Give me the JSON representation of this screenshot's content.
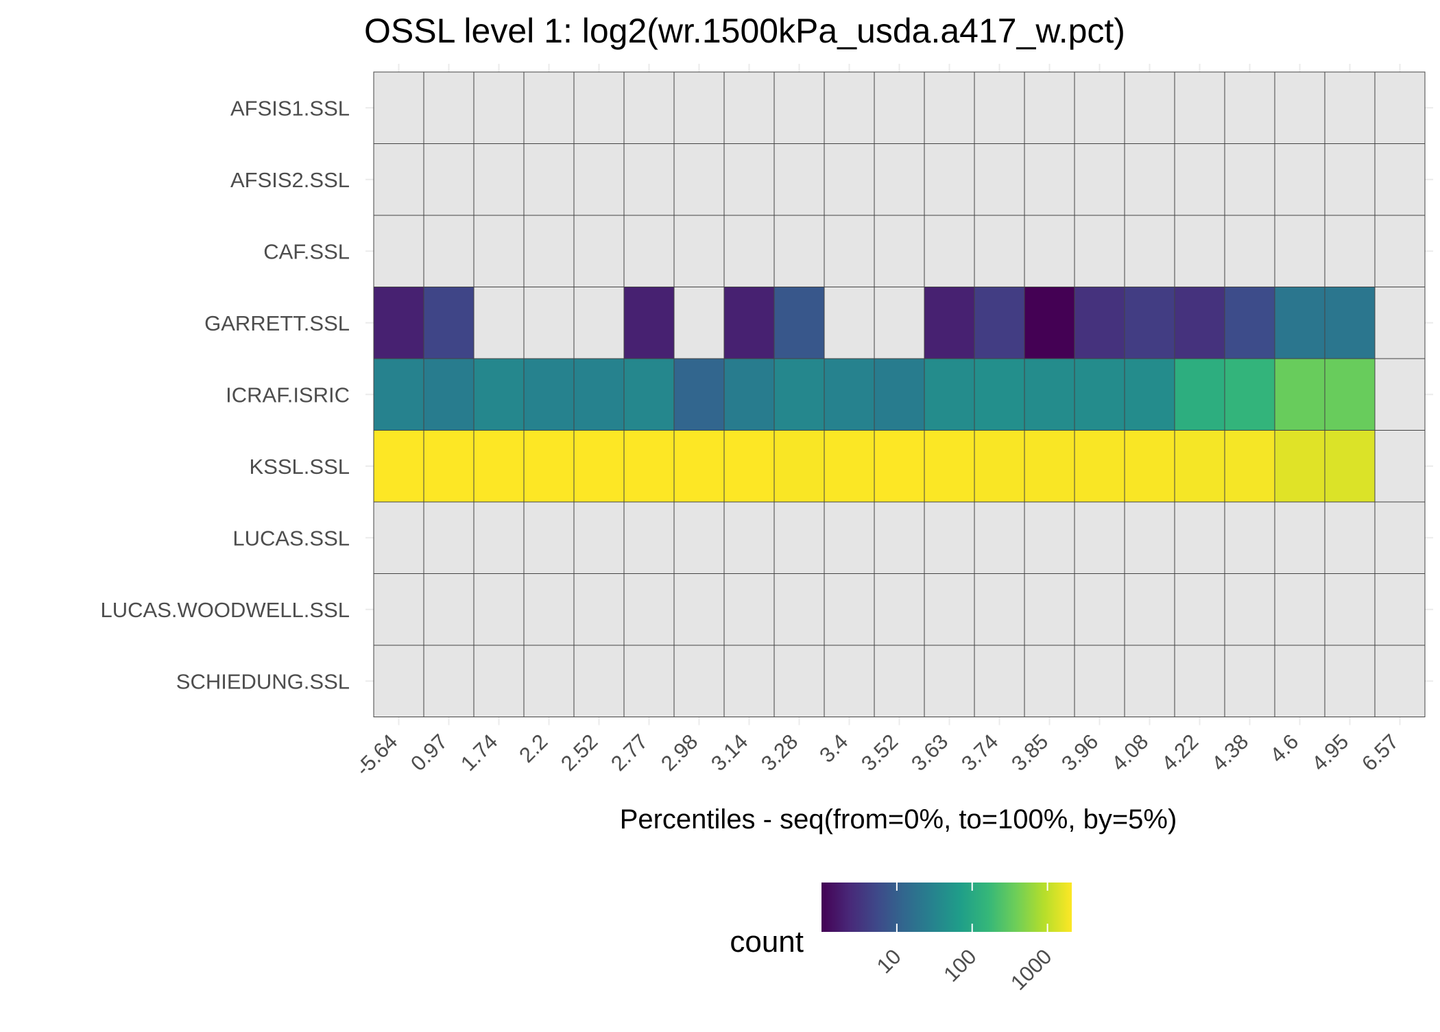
{
  "chart_data": {
    "type": "heatmap",
    "title": "OSSL level 1: log2(wr.1500kPa_usda.a417_w.pct)",
    "xlabel": "Percentiles - seq(from=0%, to=100%, by=5%)",
    "ylabel": "",
    "x_categories": [
      "-5.64",
      "0.97",
      "1.74",
      "2.2",
      "2.52",
      "2.77",
      "2.98",
      "3.14",
      "3.28",
      "3.4",
      "3.52",
      "3.63",
      "3.74",
      "3.85",
      "3.96",
      "4.08",
      "4.22",
      "4.38",
      "4.6",
      "4.95",
      "6.57"
    ],
    "y_categories": [
      "AFSIS1.SSL",
      "AFSIS2.SSL",
      "CAF.SSL",
      "GARRETT.SSL",
      "ICRAF.ISRIC",
      "KSSL.SSL",
      "LUCAS.SSL",
      "LUCAS.WOODWELL.SSL",
      "SCHIEDUNG.SSL"
    ],
    "values": [
      [
        null,
        null,
        null,
        null,
        null,
        null,
        null,
        null,
        null,
        null,
        null,
        null,
        null,
        null,
        null,
        null,
        null,
        null,
        null,
        null,
        null
      ],
      [
        null,
        null,
        null,
        null,
        null,
        null,
        null,
        null,
        null,
        null,
        null,
        null,
        null,
        null,
        null,
        null,
        null,
        null,
        null,
        null,
        null
      ],
      [
        null,
        null,
        null,
        null,
        null,
        null,
        null,
        null,
        null,
        null,
        null,
        null,
        null,
        null,
        null,
        null,
        null,
        null,
        null,
        null,
        null
      ],
      [
        2,
        5,
        null,
        null,
        null,
        2,
        null,
        2,
        8,
        null,
        null,
        2,
        4,
        1,
        3,
        4,
        3,
        6,
        20,
        20,
        null
      ],
      [
        30,
        25,
        35,
        30,
        30,
        35,
        12,
        25,
        35,
        30,
        25,
        40,
        45,
        40,
        40,
        40,
        120,
        150,
        350,
        350,
        null
      ],
      [
        2100,
        2100,
        2100,
        2100,
        2100,
        2100,
        2100,
        2100,
        2000,
        2050,
        2100,
        2050,
        2000,
        2000,
        2000,
        2000,
        1900,
        1900,
        1500,
        1400,
        null
      ],
      [
        null,
        null,
        null,
        null,
        null,
        null,
        null,
        null,
        null,
        null,
        null,
        null,
        null,
        null,
        null,
        null,
        null,
        null,
        null,
        null,
        null
      ],
      [
        null,
        null,
        null,
        null,
        null,
        null,
        null,
        null,
        null,
        null,
        null,
        null,
        null,
        null,
        null,
        null,
        null,
        null,
        null,
        null,
        null
      ],
      [
        null,
        null,
        null,
        null,
        null,
        null,
        null,
        null,
        null,
        null,
        null,
        null,
        null,
        null,
        null,
        null,
        null,
        null,
        null,
        null,
        null
      ]
    ],
    "legend": {
      "title": "count",
      "scale": "log10",
      "palette": "viridis",
      "range": [
        1,
        2100
      ],
      "ticks": [
        10,
        100,
        1000
      ],
      "tick_labels": [
        "10",
        "100",
        "1000"
      ]
    },
    "missing_color": "#e5e5e5",
    "grid": true
  }
}
